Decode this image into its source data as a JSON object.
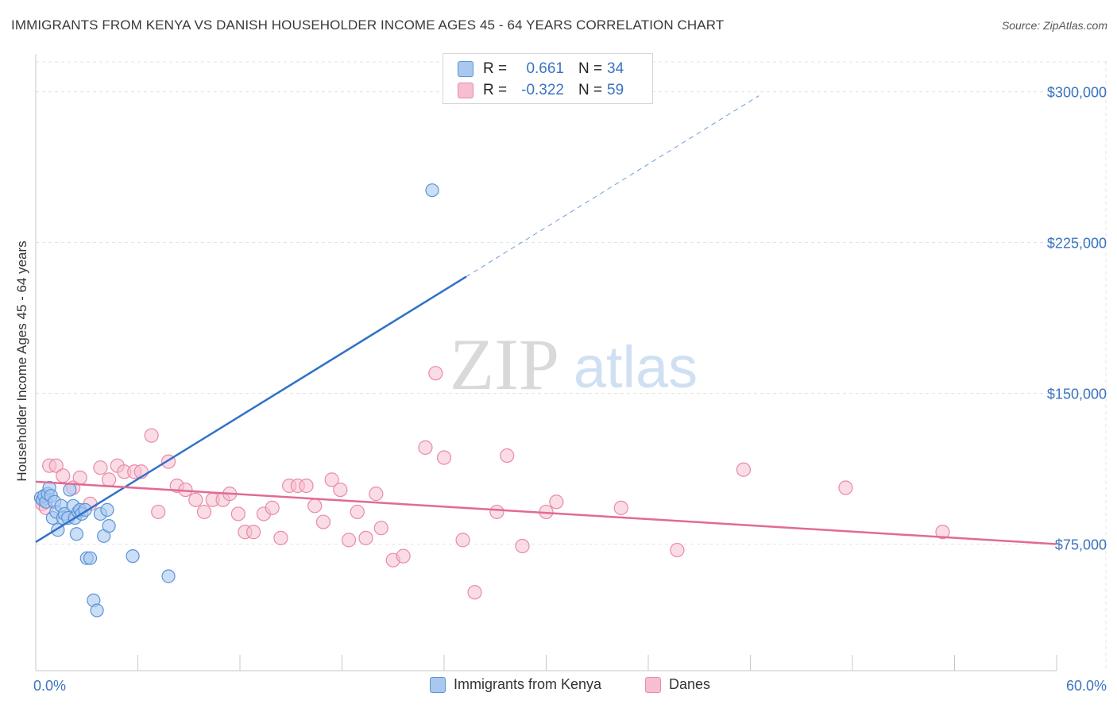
{
  "title": "IMMIGRANTS FROM KENYA VS DANISH HOUSEHOLDER INCOME AGES 45 - 64 YEARS CORRELATION CHART",
  "source": "Source: ZipAtlas.com",
  "watermark": {
    "zip": "ZIP",
    "atlas": "atlas"
  },
  "legend": {
    "rows": [
      {
        "r_label": "R =",
        "r_value": "0.661",
        "n_label": "N =",
        "n_value": "34"
      },
      {
        "r_label": "R =",
        "r_value": "-0.322",
        "n_label": "N =",
        "n_value": "59"
      }
    ]
  },
  "bottom_legend": {
    "series1": "Immigrants from Kenya",
    "series2": "Danes"
  },
  "colors": {
    "blue_fill": "#a9c8f0",
    "blue_stroke": "#5b93d6",
    "blue_line": "#2f72c9",
    "pink_fill": "#f6bfd0",
    "pink_stroke": "#e98aa8",
    "pink_line": "#e26a94",
    "axis_text": "#3a74c0",
    "grid": "#e3e3e3"
  },
  "chart_data": {
    "type": "scatter",
    "title": "IMMIGRANTS FROM KENYA VS DANISH HOUSEHOLDER INCOME AGES 45 - 64 YEARS CORRELATION CHART",
    "xlabel": "",
    "ylabel": "Householder Income Ages 45 - 64 years",
    "xlim": [
      0,
      60
    ],
    "ylim": [
      12000,
      318000
    ],
    "x_tick_labels": [
      "0.0%",
      "60.0%"
    ],
    "y_ticks": [
      75000,
      150000,
      225000,
      300000
    ],
    "y_tick_labels": [
      "$75,000",
      "$150,000",
      "$225,000",
      "$300,000"
    ],
    "grid": true,
    "series": [
      {
        "name": "Immigrants from Kenya",
        "r": 0.661,
        "n": 34,
        "trend": {
          "x0": 0,
          "y0": 76000,
          "x1": 25.3,
          "y1": 208000,
          "dash_to_x": 42.5,
          "dash_to_y": 298000
        },
        "points": [
          [
            0.3,
            98000
          ],
          [
            0.4,
            97000
          ],
          [
            0.5,
            99000
          ],
          [
            0.6,
            96000
          ],
          [
            0.7,
            100000
          ],
          [
            0.8,
            103000
          ],
          [
            0.9,
            99000
          ],
          [
            1.0,
            88000
          ],
          [
            1.1,
            96000
          ],
          [
            1.2,
            91000
          ],
          [
            1.3,
            82000
          ],
          [
            1.5,
            94000
          ],
          [
            1.6,
            88000
          ],
          [
            1.7,
            90000
          ],
          [
            1.9,
            88000
          ],
          [
            2.0,
            102000
          ],
          [
            2.2,
            94000
          ],
          [
            2.3,
            88000
          ],
          [
            2.4,
            80000
          ],
          [
            2.5,
            91000
          ],
          [
            2.6,
            92000
          ],
          [
            2.7,
            90000
          ],
          [
            2.9,
            92000
          ],
          [
            3.0,
            68000
          ],
          [
            3.2,
            68000
          ],
          [
            3.4,
            47000
          ],
          [
            3.6,
            42000
          ],
          [
            3.8,
            90000
          ],
          [
            4.0,
            79000
          ],
          [
            4.2,
            92000
          ],
          [
            4.3,
            84000
          ],
          [
            5.7,
            69000
          ],
          [
            7.8,
            59000
          ],
          [
            23.3,
            251000
          ]
        ]
      },
      {
        "name": "Danes",
        "r": -0.322,
        "n": 59,
        "trend": {
          "x0": 0,
          "y0": 106000,
          "x1": 60,
          "y1": 75000
        },
        "points": [
          [
            0.4,
            95000
          ],
          [
            0.6,
            93000
          ],
          [
            0.8,
            114000
          ],
          [
            1.2,
            114000
          ],
          [
            1.6,
            109000
          ],
          [
            2.2,
            103000
          ],
          [
            2.6,
            108000
          ],
          [
            3.2,
            95000
          ],
          [
            3.8,
            113000
          ],
          [
            4.3,
            107000
          ],
          [
            4.8,
            114000
          ],
          [
            5.2,
            111000
          ],
          [
            5.8,
            111000
          ],
          [
            6.2,
            111000
          ],
          [
            6.8,
            129000
          ],
          [
            7.2,
            91000
          ],
          [
            7.8,
            116000
          ],
          [
            8.3,
            104000
          ],
          [
            8.8,
            102000
          ],
          [
            9.4,
            97000
          ],
          [
            9.9,
            91000
          ],
          [
            10.4,
            97000
          ],
          [
            11.0,
            97000
          ],
          [
            11.4,
            100000
          ],
          [
            11.9,
            90000
          ],
          [
            12.3,
            81000
          ],
          [
            12.8,
            81000
          ],
          [
            13.4,
            90000
          ],
          [
            13.9,
            93000
          ],
          [
            14.4,
            78000
          ],
          [
            14.9,
            104000
          ],
          [
            15.4,
            104000
          ],
          [
            15.9,
            104000
          ],
          [
            16.4,
            94000
          ],
          [
            16.9,
            86000
          ],
          [
            17.4,
            107000
          ],
          [
            17.9,
            102000
          ],
          [
            18.4,
            77000
          ],
          [
            18.9,
            91000
          ],
          [
            19.4,
            78000
          ],
          [
            20.0,
            100000
          ],
          [
            20.3,
            83000
          ],
          [
            21.0,
            67000
          ],
          [
            21.6,
            69000
          ],
          [
            22.9,
            123000
          ],
          [
            24.0,
            118000
          ],
          [
            25.1,
            77000
          ],
          [
            25.8,
            51000
          ],
          [
            27.1,
            91000
          ],
          [
            27.7,
            119000
          ],
          [
            28.6,
            74000
          ],
          [
            30.0,
            91000
          ],
          [
            30.6,
            96000
          ],
          [
            34.4,
            93000
          ],
          [
            37.7,
            72000
          ],
          [
            41.6,
            112000
          ],
          [
            47.6,
            103000
          ],
          [
            53.3,
            81000
          ],
          [
            23.5,
            160000
          ]
        ]
      }
    ]
  }
}
